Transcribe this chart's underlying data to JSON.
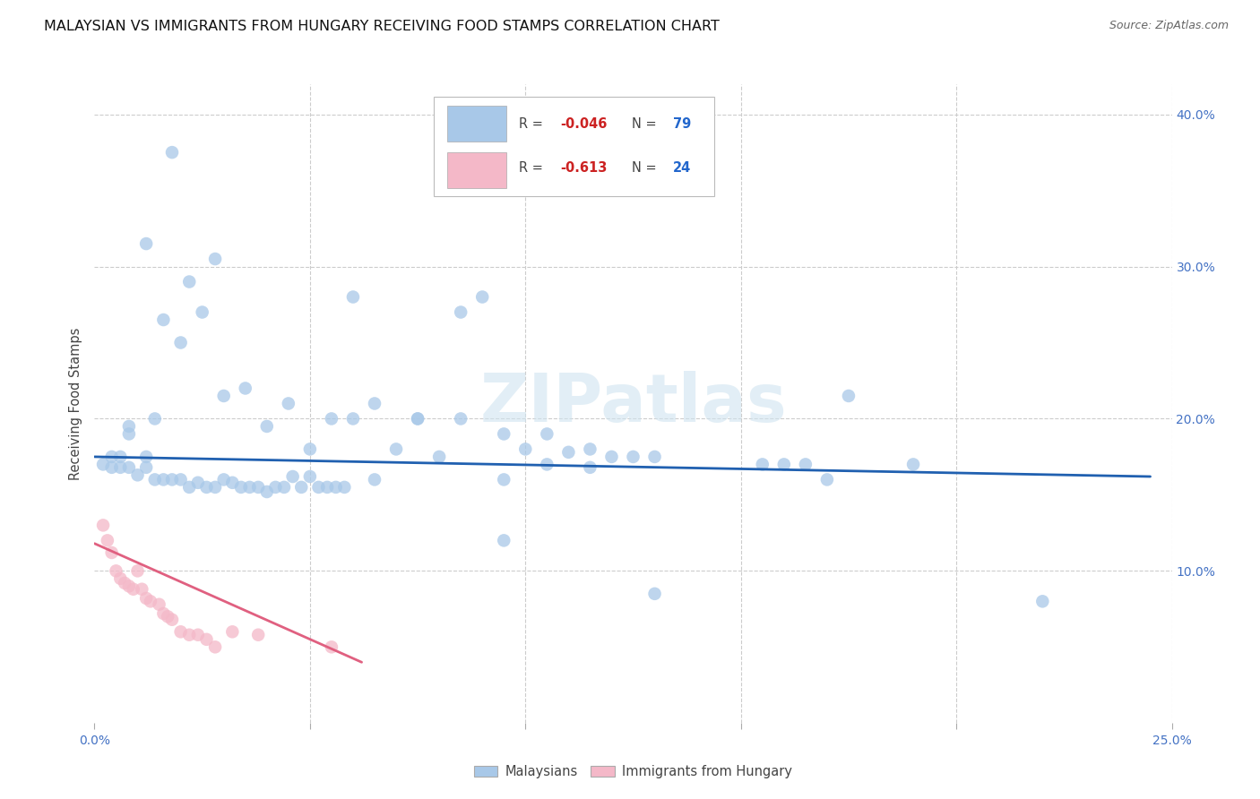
{
  "title": "MALAYSIAN VS IMMIGRANTS FROM HUNGARY RECEIVING FOOD STAMPS CORRELATION CHART",
  "source": "Source: ZipAtlas.com",
  "ylabel": "Receiving Food Stamps",
  "xlim": [
    0.0,
    0.25
  ],
  "ylim": [
    0.0,
    0.42
  ],
  "legend_R_blue": "-0.046",
  "legend_N_blue": "79",
  "legend_R_pink": "-0.613",
  "legend_N_pink": "24",
  "blue_color": "#a8c8e8",
  "pink_color": "#f4b8c8",
  "line_blue_color": "#2060b0",
  "line_pink_color": "#e06080",
  "tick_color": "#4472c4",
  "grid_color": "#cccccc",
  "watermark": "ZIPatlas",
  "blue_scatter_x": [
    0.018,
    0.012,
    0.022,
    0.028,
    0.008,
    0.014,
    0.004,
    0.006,
    0.008,
    0.012,
    0.016,
    0.02,
    0.025,
    0.03,
    0.035,
    0.04,
    0.045,
    0.05,
    0.055,
    0.06,
    0.065,
    0.07,
    0.075,
    0.08,
    0.085,
    0.09,
    0.095,
    0.1,
    0.105,
    0.11,
    0.115,
    0.12,
    0.06,
    0.065,
    0.075,
    0.085,
    0.095,
    0.105,
    0.115,
    0.125,
    0.13,
    0.175,
    0.002,
    0.004,
    0.006,
    0.008,
    0.01,
    0.012,
    0.014,
    0.016,
    0.018,
    0.02,
    0.022,
    0.024,
    0.026,
    0.028,
    0.03,
    0.032,
    0.034,
    0.036,
    0.038,
    0.04,
    0.042,
    0.044,
    0.046,
    0.048,
    0.05,
    0.052,
    0.054,
    0.056,
    0.058,
    0.155,
    0.16,
    0.165,
    0.17,
    0.19,
    0.22,
    0.095,
    0.13
  ],
  "blue_scatter_y": [
    0.375,
    0.315,
    0.29,
    0.305,
    0.195,
    0.2,
    0.175,
    0.175,
    0.19,
    0.175,
    0.265,
    0.25,
    0.27,
    0.215,
    0.22,
    0.195,
    0.21,
    0.18,
    0.2,
    0.28,
    0.21,
    0.18,
    0.2,
    0.175,
    0.27,
    0.28,
    0.16,
    0.18,
    0.17,
    0.178,
    0.168,
    0.175,
    0.2,
    0.16,
    0.2,
    0.2,
    0.19,
    0.19,
    0.18,
    0.175,
    0.175,
    0.215,
    0.17,
    0.168,
    0.168,
    0.168,
    0.163,
    0.168,
    0.16,
    0.16,
    0.16,
    0.16,
    0.155,
    0.158,
    0.155,
    0.155,
    0.16,
    0.158,
    0.155,
    0.155,
    0.155,
    0.152,
    0.155,
    0.155,
    0.162,
    0.155,
    0.162,
    0.155,
    0.155,
    0.155,
    0.155,
    0.17,
    0.17,
    0.17,
    0.16,
    0.17,
    0.08,
    0.12,
    0.085
  ],
  "pink_scatter_x": [
    0.002,
    0.003,
    0.004,
    0.005,
    0.006,
    0.007,
    0.008,
    0.009,
    0.01,
    0.011,
    0.012,
    0.013,
    0.015,
    0.016,
    0.017,
    0.018,
    0.02,
    0.022,
    0.024,
    0.026,
    0.028,
    0.032,
    0.038,
    0.055
  ],
  "pink_scatter_y": [
    0.13,
    0.12,
    0.112,
    0.1,
    0.095,
    0.092,
    0.09,
    0.088,
    0.1,
    0.088,
    0.082,
    0.08,
    0.078,
    0.072,
    0.07,
    0.068,
    0.06,
    0.058,
    0.058,
    0.055,
    0.05,
    0.06,
    0.058,
    0.05
  ],
  "blue_line_x": [
    0.0,
    0.245
  ],
  "blue_line_y": [
    0.175,
    0.162
  ],
  "pink_line_x": [
    0.0,
    0.062
  ],
  "pink_line_y": [
    0.118,
    0.04
  ],
  "background_color": "#ffffff"
}
